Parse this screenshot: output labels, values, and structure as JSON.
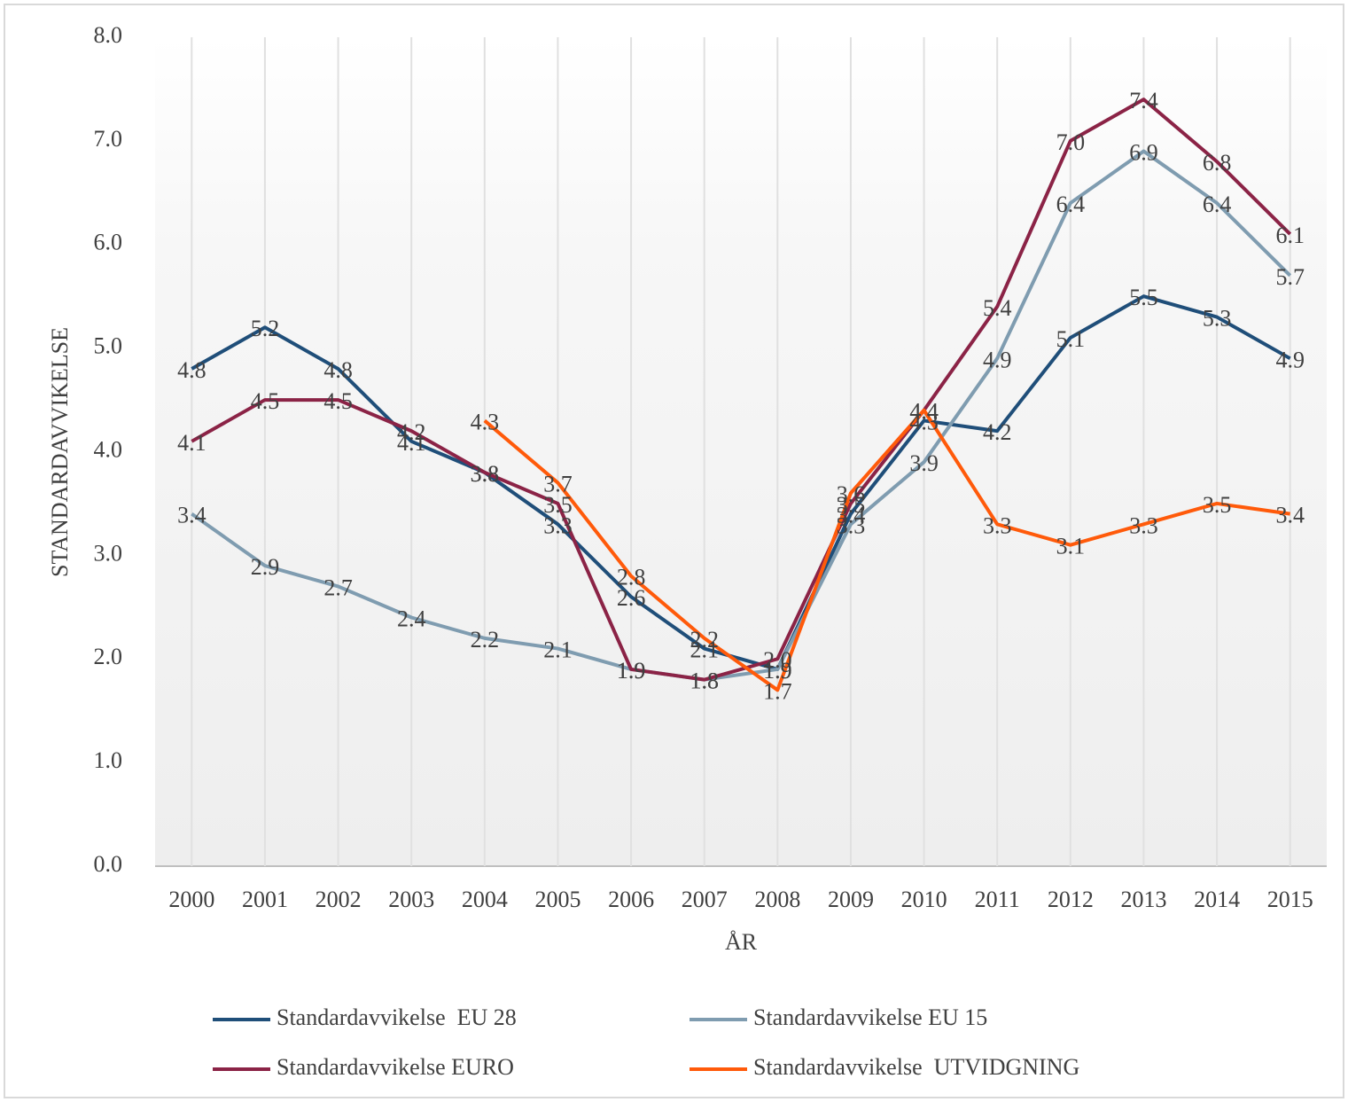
{
  "chart_data": {
    "type": "line",
    "categories": [
      "2000",
      "2001",
      "2002",
      "2003",
      "2004",
      "2005",
      "2006",
      "2007",
      "2008",
      "2009",
      "2010",
      "2011",
      "2012",
      "2013",
      "2014",
      "2015"
    ],
    "ylabel": "STANDARDAVVIKELSE",
    "xlabel": "ÅR",
    "ylim": [
      0,
      8
    ],
    "yticks": [
      {
        "value": 0,
        "label": "0.0"
      },
      {
        "value": 1,
        "label": "1.0"
      },
      {
        "value": 2,
        "label": "2.0"
      },
      {
        "value": 3,
        "label": "3.0"
      },
      {
        "value": 4,
        "label": "4.0"
      },
      {
        "value": 5,
        "label": "5.0"
      },
      {
        "value": 6,
        "label": "6.0"
      },
      {
        "value": 7,
        "label": "7.0"
      },
      {
        "value": 8,
        "label": "8.0"
      }
    ],
    "grid": true,
    "series": [
      {
        "name": "Standardavvikelse  EU 28",
        "color": "#1f4e79",
        "values": [
          4.8,
          5.2,
          4.8,
          4.1,
          3.8,
          3.3,
          2.6,
          2.1,
          1.9,
          3.4,
          4.3,
          4.2,
          5.1,
          5.5,
          5.3,
          4.9
        ],
        "value_labels": [
          "4.8",
          "5.2",
          "4.8",
          "4.1",
          "3.8",
          "3.3",
          "2.6",
          "2.1",
          "1.9",
          "3.4",
          "4.3",
          "4.2",
          "5.1",
          "5.5",
          "5.3",
          "4.9"
        ]
      },
      {
        "name": "Standardavvikelse EU 15",
        "color": "#7f9cb0",
        "values": [
          3.4,
          2.9,
          2.7,
          2.4,
          2.2,
          2.1,
          1.9,
          1.8,
          1.9,
          3.3,
          3.9,
          4.9,
          6.4,
          6.9,
          6.4,
          5.7
        ],
        "value_labels": [
          "3.4",
          "2.9",
          "2.7",
          "2.4",
          "2.2",
          "2.1",
          "1.9",
          "1.8",
          "1.9",
          "3.3",
          "3.9",
          "4.9",
          "6.4",
          "6.9",
          "6.4",
          "5.7"
        ]
      },
      {
        "name": "Standardavvikelse EURO",
        "color": "#8b2346",
        "values": [
          4.1,
          4.5,
          4.5,
          4.2,
          3.8,
          3.5,
          1.9,
          1.8,
          2.0,
          3.5,
          4.4,
          5.4,
          7.0,
          7.4,
          6.8,
          6.1
        ],
        "value_labels": [
          "4.1",
          "4.5",
          "4.5",
          "4.2",
          "3.8",
          "3.5",
          "1.9",
          "1.8",
          "2.0",
          "3.5",
          "4.4",
          "5.4",
          "7.0",
          "7.4",
          "6.8",
          "6.1"
        ]
      },
      {
        "name": "Standardavvikelse  UTVIDGNING",
        "color": "#ff5a0a",
        "values": [
          null,
          null,
          null,
          null,
          4.3,
          3.7,
          2.8,
          2.2,
          1.7,
          3.6,
          4.4,
          3.3,
          3.1,
          3.3,
          3.5,
          3.4
        ],
        "value_labels": [
          null,
          null,
          null,
          null,
          "4.3",
          "3.7",
          "2.8",
          "2.2",
          "1.7",
          "3.6",
          "4.4",
          "3.3",
          "3.1",
          "3.3",
          "3.5",
          "3.4"
        ]
      }
    ]
  }
}
